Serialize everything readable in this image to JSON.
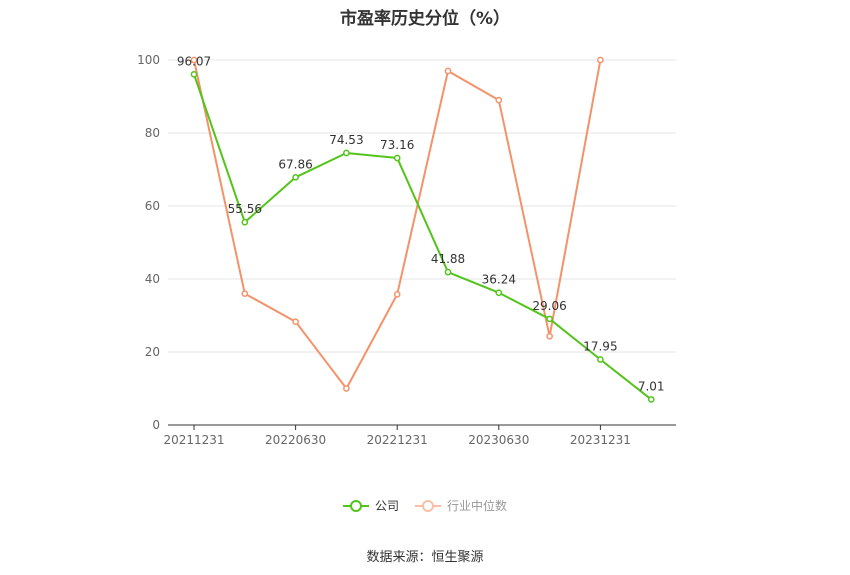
{
  "chart_data": {
    "type": "line",
    "title": "市盈率历史分位（%）",
    "x": [
      "20211231",
      "20220331",
      "20220630",
      "20220930",
      "20221231",
      "20230331",
      "20230630",
      "20230930",
      "20231231",
      "20240331"
    ],
    "x_tick_labels": [
      "20211231",
      "20220630",
      "20221231",
      "20230630",
      "20231231"
    ],
    "ylim": [
      0,
      100
    ],
    "y_ticks": [
      0,
      20,
      40,
      60,
      80,
      100
    ],
    "grid": true,
    "legend_position": "bottom",
    "series": [
      {
        "name": "公司",
        "color": "#52c41a",
        "values": [
          96.07,
          55.56,
          67.86,
          74.53,
          73.16,
          41.88,
          36.24,
          29.06,
          17.95,
          7.01
        ],
        "labels": [
          "96.07",
          "55.56",
          "67.86",
          "74.53",
          "73.16",
          "41.88",
          "36.24",
          "29.06",
          "17.95",
          "7.01"
        ]
      },
      {
        "name": "行业中位数",
        "color": "#f4926a",
        "values": [
          100,
          36,
          28.3,
          10,
          35.8,
          97,
          89,
          24.3,
          100,
          null
        ]
      }
    ]
  },
  "source": "数据来源：恒生聚源"
}
